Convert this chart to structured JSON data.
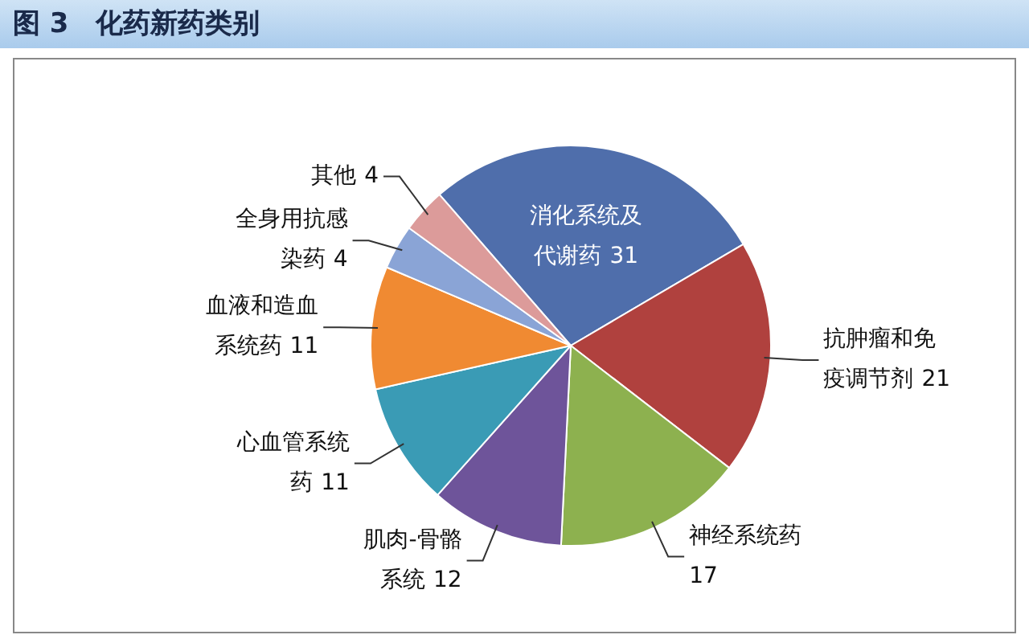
{
  "chart_data": {
    "type": "pie",
    "title": "图 3　化药新药类别",
    "categories": [
      "消化系统及代谢药",
      "抗肿瘤和免疫调节剂",
      "神经系统药",
      "肌肉-骨骼系统",
      "心血管系统药",
      "血液和造血系统药",
      "全身用抗感染药",
      "其他"
    ],
    "values": [
      31,
      21,
      17,
      12,
      11,
      11,
      4,
      4
    ],
    "colors": [
      "#4f6eab",
      "#b0413e",
      "#8db14f",
      "#6e549a",
      "#3a9bb5",
      "#f08a32",
      "#8aa4d6",
      "#dc9b9a"
    ],
    "data_labels": true,
    "legend": false
  }
}
